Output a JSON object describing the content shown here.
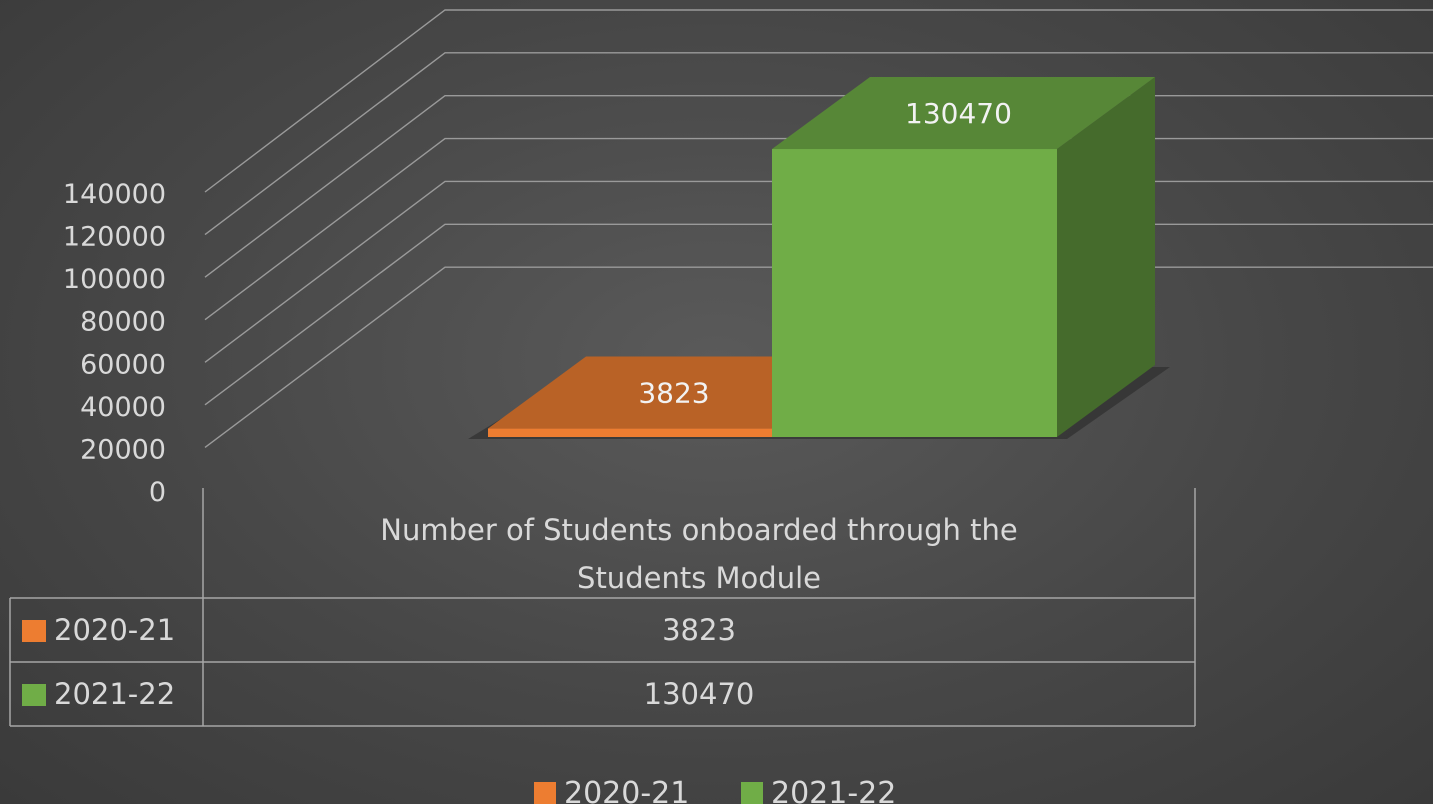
{
  "chart_data": {
    "type": "bar",
    "variant": "3d-column-with-data-table",
    "categories": [
      "Number of Students onboarded through the Students Module"
    ],
    "category_label_lines": [
      "Number of Students onboarded through the",
      "Students Module"
    ],
    "series": [
      {
        "name": "2020-21",
        "values": [
          3823
        ],
        "color": "#ed7d31"
      },
      {
        "name": "2021-22",
        "values": [
          130470
        ],
        "color": "#70ad47"
      }
    ],
    "ylim": [
      0,
      140000
    ],
    "yticks": [
      0,
      20000,
      40000,
      60000,
      80000,
      100000,
      120000,
      140000
    ],
    "grid": true,
    "legend": "bottom",
    "data_labels": true,
    "data_table": true
  },
  "colors": {
    "background": "#474747",
    "text": "#d9d9d9",
    "gridline": "#9a9a9a",
    "table_border": "#a6a6a6"
  }
}
